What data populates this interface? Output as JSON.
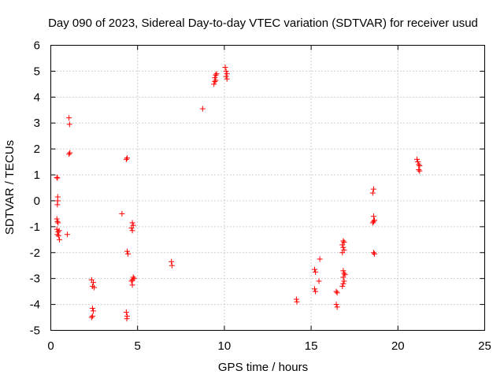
{
  "chart_data": {
    "type": "scatter",
    "title": "Day 090 of 2023, Sidereal Day-to-day VTEC variation (SDTVAR) for receiver usud",
    "xlabel": "GPS time / hours",
    "ylabel": "SDTVAR / TECUs",
    "xlim": [
      0,
      25
    ],
    "ylim": [
      -5,
      6
    ],
    "xticks": [
      0,
      5,
      10,
      15,
      20,
      25
    ],
    "yticks": [
      -5,
      -4,
      -3,
      -2,
      -1,
      0,
      1,
      2,
      3,
      4,
      5,
      6
    ],
    "grid": true,
    "marker": "plus",
    "color": "#ff0000",
    "series": [
      {
        "name": "SDTVAR",
        "points": [
          [
            0.35,
            0.9
          ],
          [
            0.38,
            0.88
          ],
          [
            0.4,
            0.15
          ],
          [
            0.4,
            0.0
          ],
          [
            0.38,
            -0.15
          ],
          [
            0.35,
            -0.7
          ],
          [
            0.38,
            -0.8
          ],
          [
            0.42,
            -0.85
          ],
          [
            0.35,
            -1.1
          ],
          [
            0.42,
            -1.2
          ],
          [
            0.48,
            -1.15
          ],
          [
            0.38,
            -1.3
          ],
          [
            0.45,
            -1.35
          ],
          [
            0.5,
            -1.5
          ],
          [
            0.95,
            -1.3
          ],
          [
            1.05,
            1.8
          ],
          [
            1.1,
            1.85
          ],
          [
            1.05,
            3.2
          ],
          [
            1.08,
            2.95
          ],
          [
            2.35,
            -3.05
          ],
          [
            2.45,
            -3.15
          ],
          [
            2.4,
            -3.3
          ],
          [
            2.5,
            -3.35
          ],
          [
            2.4,
            -4.15
          ],
          [
            2.45,
            -4.25
          ],
          [
            2.4,
            -4.45
          ],
          [
            2.35,
            -4.5
          ],
          [
            4.1,
            -0.5
          ],
          [
            4.35,
            1.6
          ],
          [
            4.4,
            1.65
          ],
          [
            4.4,
            -1.95
          ],
          [
            4.45,
            -2.05
          ],
          [
            4.35,
            -4.3
          ],
          [
            4.4,
            -4.45
          ],
          [
            4.38,
            -4.55
          ],
          [
            4.7,
            -0.85
          ],
          [
            4.75,
            -0.95
          ],
          [
            4.65,
            -1.05
          ],
          [
            4.7,
            -1.15
          ],
          [
            4.75,
            -2.95
          ],
          [
            4.7,
            -3.05
          ],
          [
            4.65,
            -3.1
          ],
          [
            4.8,
            -3.0
          ],
          [
            4.7,
            -3.25
          ],
          [
            6.95,
            -2.35
          ],
          [
            6.98,
            -2.5
          ],
          [
            8.75,
            3.55
          ],
          [
            9.4,
            4.5
          ],
          [
            9.45,
            4.6
          ],
          [
            9.5,
            4.65
          ],
          [
            9.45,
            4.75
          ],
          [
            9.5,
            4.85
          ],
          [
            9.55,
            4.9
          ],
          [
            10.05,
            5.15
          ],
          [
            10.1,
            5.0
          ],
          [
            10.15,
            4.9
          ],
          [
            10.1,
            4.8
          ],
          [
            10.15,
            4.7
          ],
          [
            14.15,
            -3.8
          ],
          [
            14.18,
            -3.9
          ],
          [
            15.2,
            -2.65
          ],
          [
            15.25,
            -2.75
          ],
          [
            15.2,
            -3.4
          ],
          [
            15.25,
            -3.5
          ],
          [
            15.5,
            -2.25
          ],
          [
            15.45,
            -3.1
          ],
          [
            16.45,
            -3.5
          ],
          [
            16.5,
            -3.55
          ],
          [
            16.45,
            -4.0
          ],
          [
            16.5,
            -4.1
          ],
          [
            16.85,
            -1.55
          ],
          [
            16.9,
            -1.6
          ],
          [
            16.8,
            -1.7
          ],
          [
            16.85,
            -1.8
          ],
          [
            16.9,
            -1.9
          ],
          [
            16.8,
            -2.0
          ],
          [
            16.85,
            -2.7
          ],
          [
            16.9,
            -2.8
          ],
          [
            16.95,
            -2.85
          ],
          [
            16.85,
            -2.95
          ],
          [
            16.9,
            -3.1
          ],
          [
            16.85,
            -3.2
          ],
          [
            16.8,
            -3.3
          ],
          [
            18.6,
            0.45
          ],
          [
            18.55,
            0.3
          ],
          [
            18.6,
            -0.6
          ],
          [
            18.65,
            -0.75
          ],
          [
            18.6,
            -0.8
          ],
          [
            18.55,
            -0.85
          ],
          [
            18.6,
            -2.0
          ],
          [
            18.65,
            -2.05
          ],
          [
            21.1,
            1.6
          ],
          [
            21.15,
            1.5
          ],
          [
            21.2,
            1.4
          ],
          [
            21.25,
            1.35
          ],
          [
            21.2,
            1.2
          ],
          [
            21.25,
            1.15
          ]
        ]
      }
    ]
  }
}
